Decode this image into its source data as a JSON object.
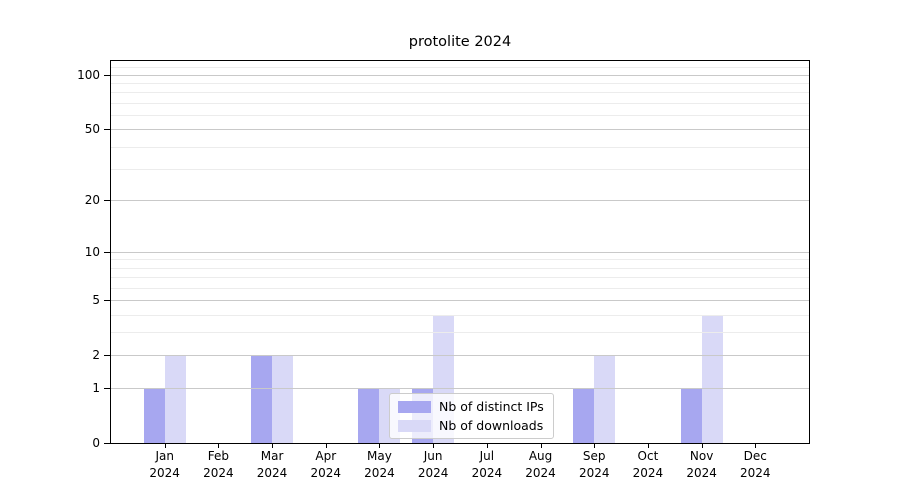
{
  "title": "protolite 2024",
  "colors": {
    "background": "#ffffff",
    "ips_bar": "#a7a7f0",
    "downloads_bar": "#d9d9f7",
    "grid_major": "#c9c9c9",
    "grid_minor": "#ececec",
    "spine": "#000000",
    "text": "#000000",
    "legend_border": "#cccccc"
  },
  "chart_data": {
    "type": "bar",
    "title": "protolite 2024",
    "categories": [
      "Jan 2024",
      "Feb 2024",
      "Mar 2024",
      "Apr 2024",
      "May 2024",
      "Jun 2024",
      "Jul 2024",
      "Aug 2024",
      "Sep 2024",
      "Oct 2024",
      "Nov 2024",
      "Dec 2024"
    ],
    "series": [
      {
        "key": "ips",
        "name": "Nb of distinct IPs",
        "color": "#a7a7f0",
        "values": [
          1,
          0,
          2,
          0,
          1,
          1,
          0,
          0,
          1,
          0,
          1,
          0
        ]
      },
      {
        "key": "downloads",
        "name": "Nb of downloads",
        "color": "#d9d9f7",
        "values": [
          2,
          0,
          2,
          0,
          1,
          4,
          0,
          0,
          2,
          0,
          4,
          0
        ]
      }
    ],
    "xlabel": "",
    "ylabel": "",
    "yscale": "log1p",
    "yticks": [
      0,
      1,
      2,
      5,
      10,
      20,
      50,
      100
    ],
    "minor_yticks": [
      3,
      4,
      6,
      7,
      8,
      9,
      30,
      40,
      60,
      70,
      80,
      90,
      110
    ],
    "ylim": [
      0,
      119
    ],
    "grid": "horizontal-major-and-minor",
    "legend_position": "lower center"
  }
}
